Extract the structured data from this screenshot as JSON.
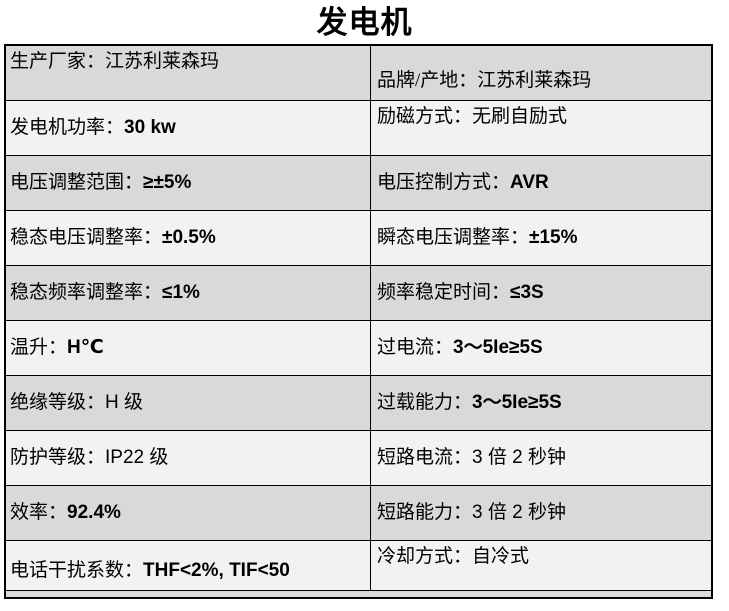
{
  "page": {
    "title": "发电机"
  },
  "colors": {
    "shaded_row_bg": "#d9d9d9",
    "light_row_bg": "#f2f2f2",
    "border": "#000000",
    "text": "#000000",
    "page_bg": "#ffffff"
  },
  "separator": "：",
  "spec_table": {
    "rows": [
      {
        "shaded": true,
        "left": {
          "label": "生产厂家",
          "value": "江苏利莱森玛",
          "align": "top"
        },
        "right": {
          "label": "品牌/产地",
          "value": "江苏利莱森玛",
          "align": "bottom"
        }
      },
      {
        "shaded": false,
        "left": {
          "label": "发电机功率",
          "value": "30 kw",
          "align": "center"
        },
        "right": {
          "label": "励磁方式",
          "value": "无刷自励式",
          "align": "top"
        }
      },
      {
        "shaded": true,
        "left": {
          "label": "电压调整范围",
          "value": "≥±5%",
          "align": "center"
        },
        "right": {
          "label": "电压控制方式",
          "value": "AVR",
          "align": "center"
        }
      },
      {
        "shaded": false,
        "left": {
          "label": "稳态电压调整率",
          "value": "±0.5%",
          "align": "center"
        },
        "right": {
          "label": "瞬态电压调整率",
          "value": "±15%",
          "align": "center"
        }
      },
      {
        "shaded": true,
        "left": {
          "label": "稳态频率调整率",
          "value": "≤1%",
          "align": "center"
        },
        "right": {
          "label": "频率稳定时间",
          "value": "≤3S",
          "align": "center"
        }
      },
      {
        "shaded": false,
        "left": {
          "label": "温升",
          "value": "H℃",
          "align": "center"
        },
        "right": {
          "label": "过电流",
          "value": "3～5Ie≥5S",
          "align": "center"
        }
      },
      {
        "shaded": true,
        "left": {
          "label": "绝缘等级",
          "value": "H 级",
          "align": "center"
        },
        "right": {
          "label": "过载能力",
          "value": "3～5Ie≥5S",
          "align": "center"
        }
      },
      {
        "shaded": false,
        "left": {
          "label": "防护等级",
          "value": "IP22 级",
          "align": "center"
        },
        "right": {
          "label": "短路电流",
          "value": "3 倍 2 秒钟",
          "align": "center"
        }
      },
      {
        "shaded": true,
        "left": {
          "label": "效率",
          "value": "92.4%",
          "align": "center"
        },
        "right": {
          "label": "短路能力",
          "value": "3 倍 2 秒钟",
          "align": "center"
        }
      },
      {
        "shaded": false,
        "left": {
          "label": "电话干扰系数",
          "value": "THF<2%, TIF<50",
          "align": "bottom"
        },
        "right": {
          "label": "冷却方式",
          "value": "自冷式",
          "align": "top"
        }
      }
    ]
  }
}
